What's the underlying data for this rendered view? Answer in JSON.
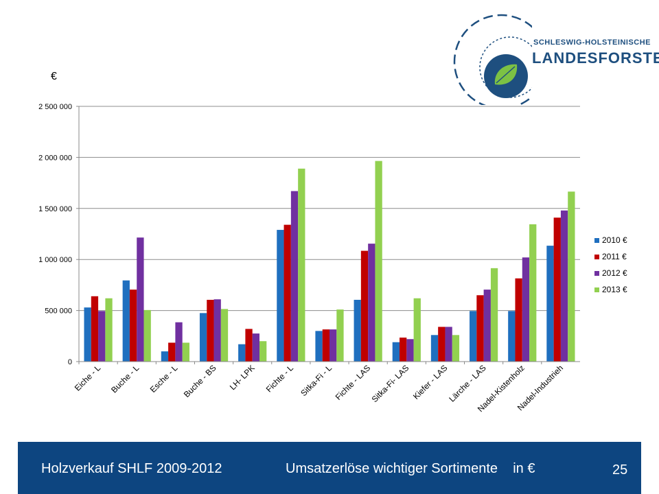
{
  "logo": {
    "line1": "SCHLESWIG-HOLSTEINISCHE",
    "line2": "LANDESFORSTEN",
    "brand_color": "#1e4f7f",
    "leaf_color": "#7cc144"
  },
  "footer": {
    "title": "Holzverkauf SHLF 2009-2012",
    "subtitle": "Umsatzerlöse wichtiger Sortimente    in €",
    "page_number": "25",
    "background": "#0d4580"
  },
  "chart_data": {
    "type": "bar",
    "unit_label": "€",
    "categories": [
      "Eiche  - L",
      "Buche - L",
      "Esche  - L",
      "Buche - BS",
      "LH- LPK",
      "Fichte - L",
      "Sitka-Fi - L",
      "Fichte - LAS",
      "Sitka-Fi- LAS",
      "Kiefer  - LAS",
      "Lärche  - LAS",
      "Nadel-Kistenholz",
      "Nadel-Industrieh"
    ],
    "series": [
      {
        "name": "2010 €",
        "color": "#1f6fbf",
        "values": [
          530000,
          795000,
          100000,
          475000,
          170000,
          1290000,
          300000,
          605000,
          190000,
          260000,
          495000,
          495000,
          1135000
        ]
      },
      {
        "name": "2011 €",
        "color": "#c00000",
        "values": [
          640000,
          705000,
          185000,
          605000,
          320000,
          1340000,
          315000,
          1085000,
          235000,
          340000,
          650000,
          815000,
          1410000
        ]
      },
      {
        "name": "2012 €",
        "color": "#7030a0",
        "values": [
          495000,
          1215000,
          385000,
          610000,
          275000,
          1670000,
          315000,
          1155000,
          220000,
          340000,
          705000,
          1020000,
          1480000
        ]
      },
      {
        "name": "2013 €",
        "color": "#92d050",
        "values": [
          620000,
          505000,
          185000,
          515000,
          200000,
          1890000,
          510000,
          1965000,
          620000,
          260000,
          915000,
          1345000,
          1665000
        ]
      }
    ],
    "ylim": [
      0,
      2500000
    ],
    "yticks": [
      0,
      500000,
      1000000,
      1500000,
      2000000,
      2500000
    ],
    "ytick_labels": [
      "0",
      "500 000",
      "1 000 000",
      "1 500 000",
      "2 000 000",
      "2 500 000"
    ],
    "grid": true,
    "legend_position": "right"
  }
}
